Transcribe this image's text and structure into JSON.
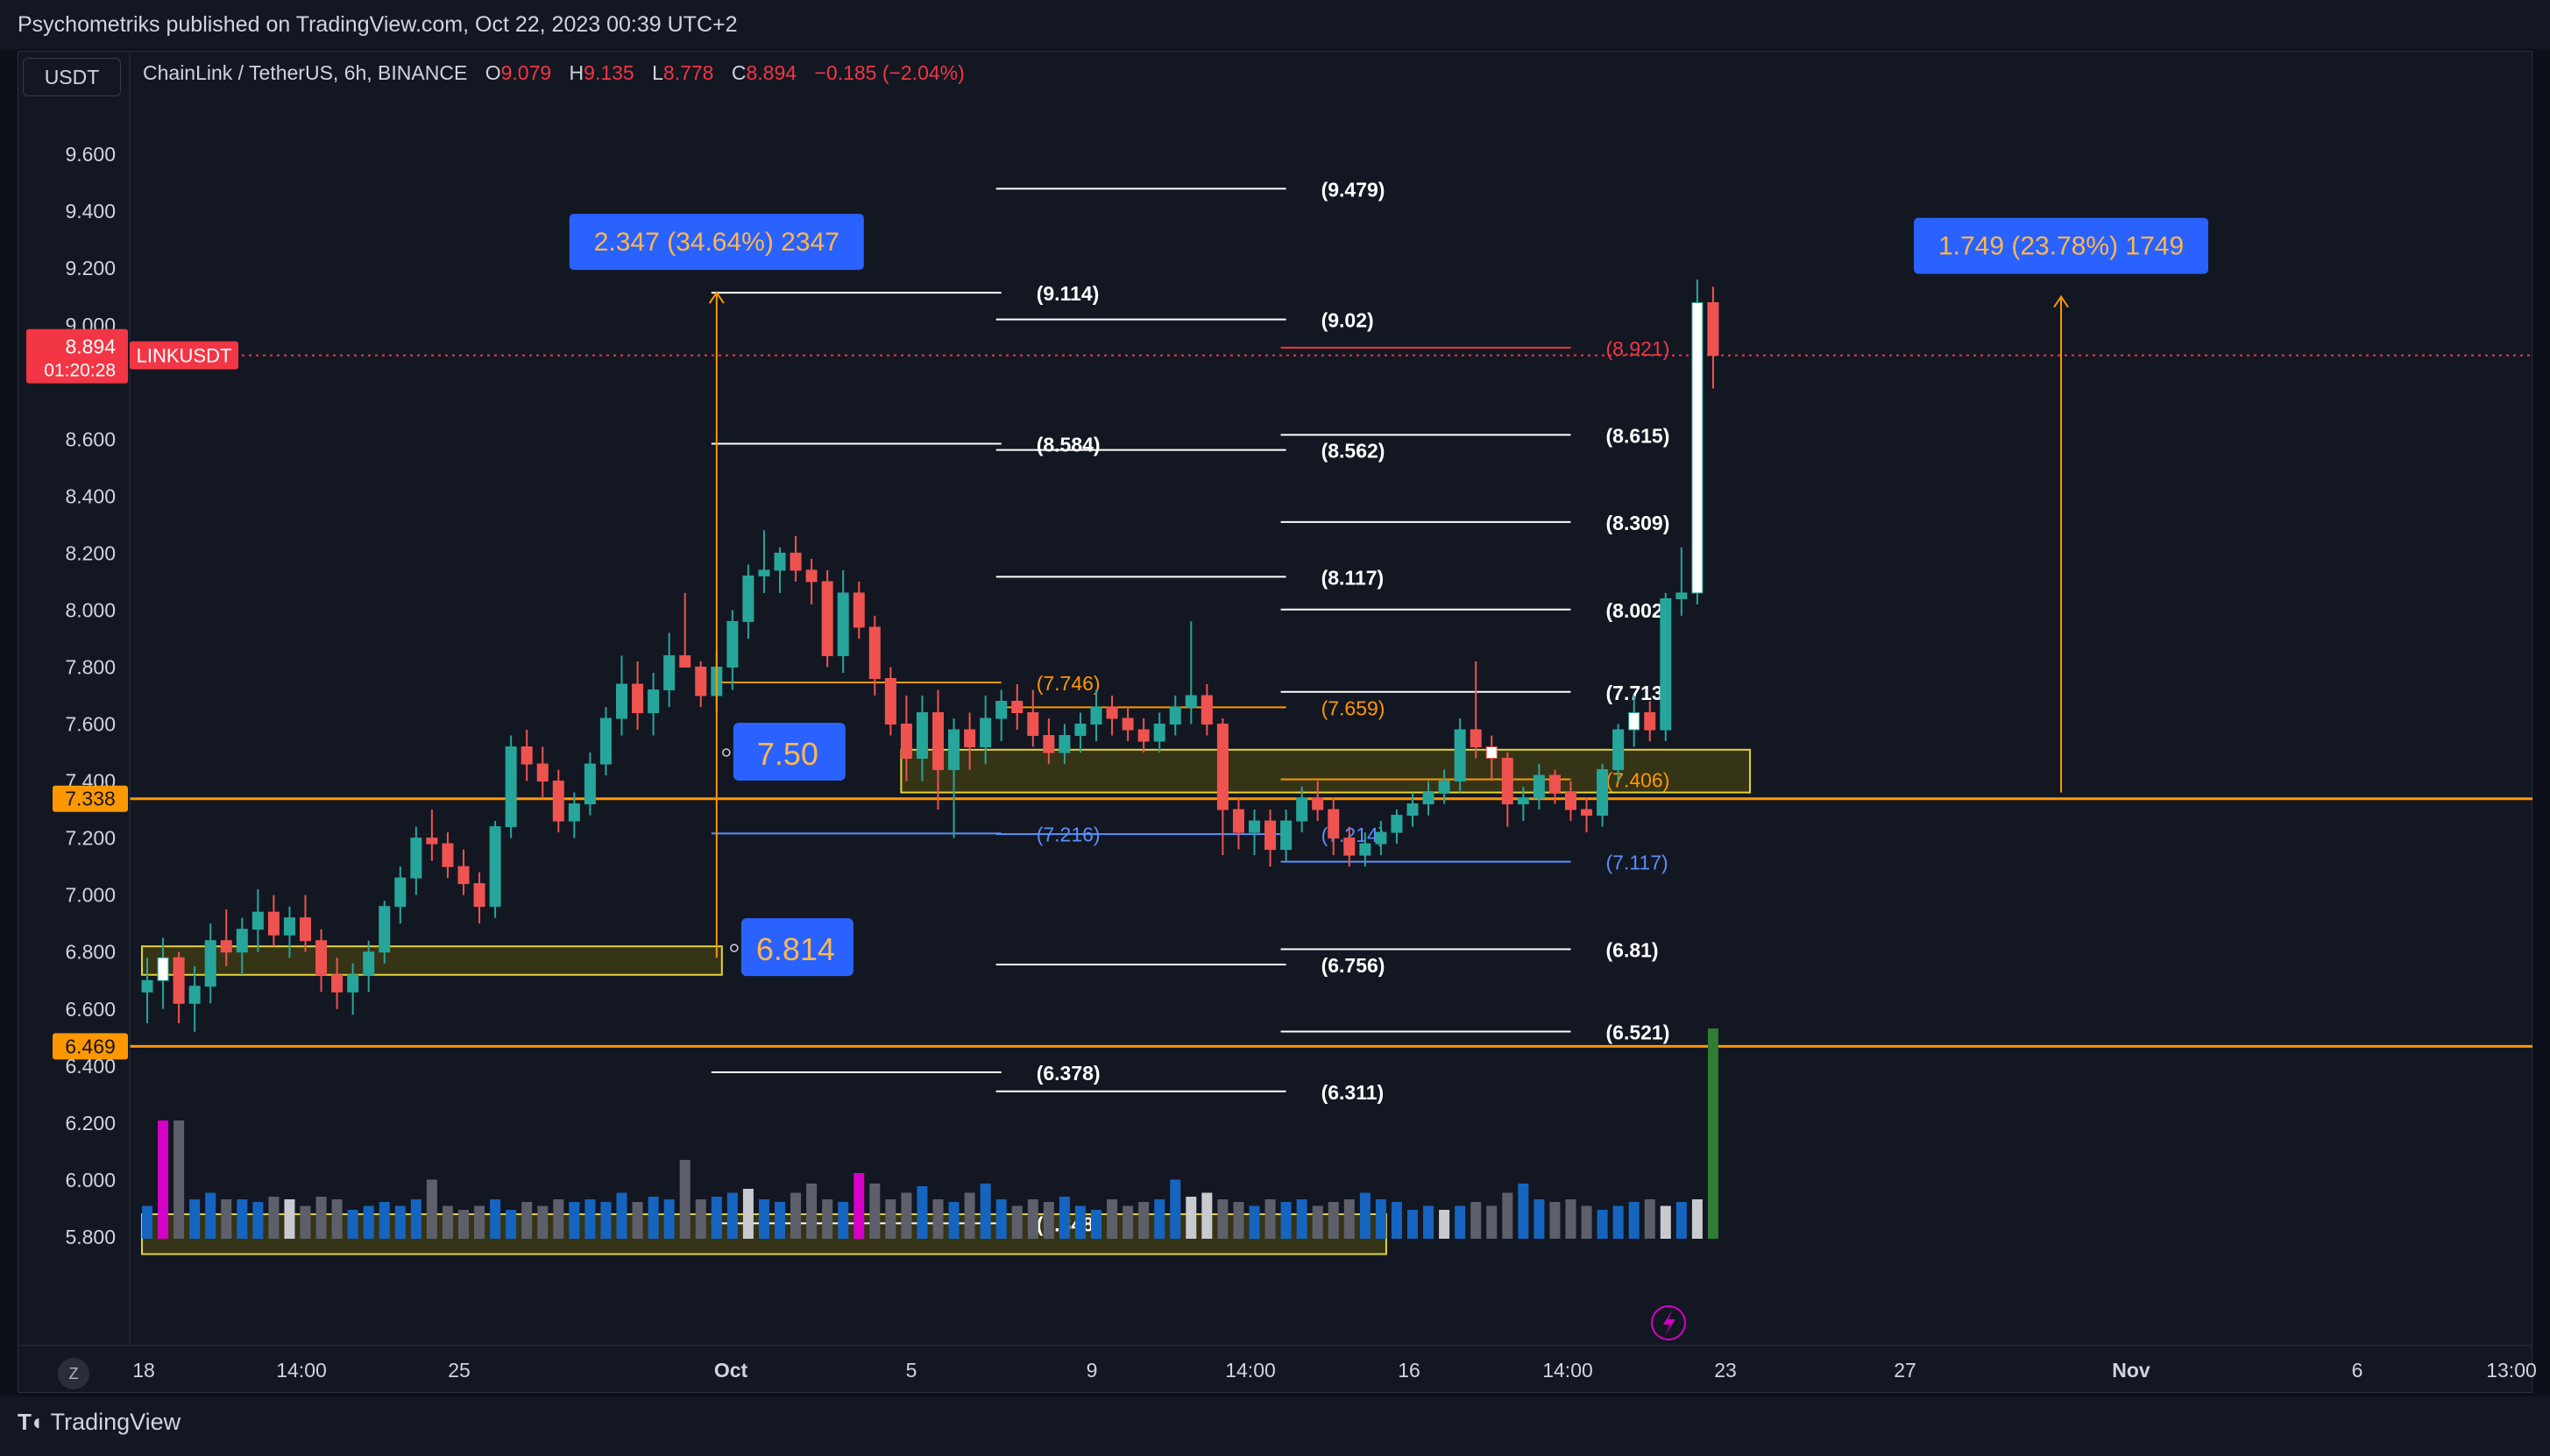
{
  "header": {
    "published": "Psychometriks published on TradingView.com, Oct 22, 2023 00:39 UTC+2"
  },
  "footer": {
    "brand": "TradingView",
    "brand_icon": "tradingview-logo-icon"
  },
  "toolbar": {
    "currency": "USDT",
    "z_label": "Z",
    "lightning_icon": "lightning-icon"
  },
  "legend": {
    "symbol": "ChainLink / TetherUS, 6h, BINANCE",
    "o_label": "O",
    "o_value": "9.079",
    "h_label": "H",
    "h_value": "9.135",
    "l_label": "L",
    "l_value": "8.778",
    "c_label": "C",
    "c_value": "8.894",
    "change": "−0.185 (−2.04%)"
  },
  "colors": {
    "up": "#26a69a",
    "down": "#ef5350",
    "orange": "#ff9800",
    "blue_label": "#2962ff",
    "zone_fill": "#3d3a14",
    "zone_stroke": "#e5d532",
    "price_red": "#f23645",
    "vol_blue": "#1565c0",
    "vol_gray": "#5d606b",
    "vol_white": "#c8cad0",
    "vol_magenta": "#d500c8",
    "vol_green": "#2e7d32"
  },
  "chart_data": {
    "type": "candlestick",
    "ylim": [
      5.7,
      9.75
    ],
    "y_ticks": [
      "9.600",
      "9.400",
      "9.200",
      "9.000",
      "8.600",
      "8.400",
      "8.200",
      "8.000",
      "7.800",
      "7.600",
      "7.400",
      "7.200",
      "7.000",
      "6.800",
      "6.600",
      "6.400",
      "6.200",
      "6.000",
      "5.800"
    ],
    "x_ticks": [
      "18",
      "14:00",
      "25",
      "Oct",
      "5",
      "9",
      "14:00",
      "16",
      "14:00",
      "23",
      "27",
      "Nov",
      "6",
      "13:00"
    ],
    "current_price": {
      "label": "LINKUSDT",
      "value": "8.894",
      "countdown": "01:20:28"
    },
    "horizontal_levels": [
      {
        "value": 7.338,
        "label": "7.338"
      },
      {
        "value": 6.469,
        "label": "6.469"
      }
    ],
    "candles_ohlc": [
      [
        6.66,
        6.78,
        6.55,
        6.7
      ],
      [
        6.7,
        6.85,
        6.6,
        6.78
      ],
      [
        6.78,
        6.8,
        6.55,
        6.62
      ],
      [
        6.62,
        6.75,
        6.52,
        6.68
      ],
      [
        6.68,
        6.9,
        6.62,
        6.84
      ],
      [
        6.84,
        6.95,
        6.75,
        6.8
      ],
      [
        6.8,
        6.92,
        6.72,
        6.88
      ],
      [
        6.88,
        7.02,
        6.8,
        6.94
      ],
      [
        6.94,
        7.0,
        6.82,
        6.86
      ],
      [
        6.86,
        6.96,
        6.78,
        6.92
      ],
      [
        6.92,
        7.0,
        6.8,
        6.84
      ],
      [
        6.84,
        6.88,
        6.66,
        6.72
      ],
      [
        6.72,
        6.78,
        6.6,
        6.66
      ],
      [
        6.66,
        6.76,
        6.58,
        6.72
      ],
      [
        6.72,
        6.84,
        6.66,
        6.8
      ],
      [
        6.8,
        6.98,
        6.76,
        6.96
      ],
      [
        6.96,
        7.1,
        6.9,
        7.06
      ],
      [
        7.06,
        7.24,
        7.0,
        7.2
      ],
      [
        7.2,
        7.3,
        7.12,
        7.18
      ],
      [
        7.18,
        7.22,
        7.06,
        7.1
      ],
      [
        7.1,
        7.16,
        7.0,
        7.04
      ],
      [
        7.04,
        7.08,
        6.9,
        6.96
      ],
      [
        6.96,
        7.26,
        6.92,
        7.24
      ],
      [
        7.24,
        7.56,
        7.2,
        7.52
      ],
      [
        7.52,
        7.58,
        7.4,
        7.46
      ],
      [
        7.46,
        7.52,
        7.34,
        7.4
      ],
      [
        7.4,
        7.44,
        7.22,
        7.26
      ],
      [
        7.26,
        7.36,
        7.2,
        7.32
      ],
      [
        7.32,
        7.5,
        7.28,
        7.46
      ],
      [
        7.46,
        7.66,
        7.42,
        7.62
      ],
      [
        7.62,
        7.84,
        7.56,
        7.74
      ],
      [
        7.74,
        7.82,
        7.58,
        7.64
      ],
      [
        7.64,
        7.78,
        7.56,
        7.72
      ],
      [
        7.72,
        7.92,
        7.66,
        7.84
      ],
      [
        7.84,
        8.06,
        7.8,
        7.8
      ],
      [
        7.8,
        7.82,
        7.66,
        7.7
      ],
      [
        7.7,
        7.86,
        7.64,
        7.8
      ],
      [
        7.8,
        8.0,
        7.72,
        7.96
      ],
      [
        7.96,
        8.16,
        7.9,
        8.12
      ],
      [
        8.12,
        8.28,
        8.06,
        8.14
      ],
      [
        8.14,
        8.22,
        8.06,
        8.2
      ],
      [
        8.2,
        8.26,
        8.1,
        8.14
      ],
      [
        8.14,
        8.18,
        8.02,
        8.1
      ],
      [
        8.1,
        8.14,
        7.8,
        7.84
      ],
      [
        7.84,
        8.14,
        7.78,
        8.06
      ],
      [
        8.06,
        8.1,
        7.9,
        7.94
      ],
      [
        7.94,
        7.98,
        7.7,
        7.76
      ],
      [
        7.76,
        7.8,
        7.56,
        7.6
      ],
      [
        7.6,
        7.7,
        7.4,
        7.48
      ],
      [
        7.48,
        7.7,
        7.4,
        7.64
      ],
      [
        7.64,
        7.72,
        7.3,
        7.44
      ],
      [
        7.44,
        7.62,
        7.2,
        7.58
      ],
      [
        7.58,
        7.64,
        7.44,
        7.52
      ],
      [
        7.52,
        7.7,
        7.46,
        7.62
      ],
      [
        7.62,
        7.72,
        7.54,
        7.68
      ],
      [
        7.68,
        7.74,
        7.58,
        7.64
      ],
      [
        7.64,
        7.72,
        7.52,
        7.56
      ],
      [
        7.56,
        7.62,
        7.46,
        7.5
      ],
      [
        7.5,
        7.6,
        7.46,
        7.56
      ],
      [
        7.56,
        7.64,
        7.5,
        7.6
      ],
      [
        7.6,
        7.72,
        7.54,
        7.66
      ],
      [
        7.66,
        7.7,
        7.56,
        7.62
      ],
      [
        7.62,
        7.66,
        7.54,
        7.58
      ],
      [
        7.58,
        7.62,
        7.5,
        7.54
      ],
      [
        7.54,
        7.64,
        7.5,
        7.6
      ],
      [
        7.6,
        7.7,
        7.56,
        7.66
      ],
      [
        7.66,
        7.96,
        7.6,
        7.7
      ],
      [
        7.7,
        7.74,
        7.56,
        7.6
      ],
      [
        7.6,
        7.62,
        7.14,
        7.3
      ],
      [
        7.3,
        7.34,
        7.16,
        7.22
      ],
      [
        7.22,
        7.3,
        7.14,
        7.26
      ],
      [
        7.26,
        7.3,
        7.1,
        7.16
      ],
      [
        7.16,
        7.3,
        7.12,
        7.26
      ],
      [
        7.26,
        7.38,
        7.22,
        7.34
      ],
      [
        7.34,
        7.4,
        7.26,
        7.3
      ],
      [
        7.3,
        7.34,
        7.14,
        7.2
      ],
      [
        7.2,
        7.24,
        7.1,
        7.14
      ],
      [
        7.14,
        7.22,
        7.1,
        7.18
      ],
      [
        7.18,
        7.26,
        7.14,
        7.22
      ],
      [
        7.22,
        7.3,
        7.18,
        7.28
      ],
      [
        7.28,
        7.36,
        7.24,
        7.32
      ],
      [
        7.32,
        7.4,
        7.28,
        7.36
      ],
      [
        7.36,
        7.44,
        7.32,
        7.4
      ],
      [
        7.4,
        7.62,
        7.36,
        7.58
      ],
      [
        7.58,
        7.82,
        7.48,
        7.52
      ],
      [
        7.52,
        7.56,
        7.4,
        7.48
      ],
      [
        7.48,
        7.5,
        7.24,
        7.32
      ],
      [
        7.32,
        7.38,
        7.26,
        7.34
      ],
      [
        7.34,
        7.46,
        7.3,
        7.42
      ],
      [
        7.42,
        7.44,
        7.32,
        7.36
      ],
      [
        7.36,
        7.4,
        7.26,
        7.3
      ],
      [
        7.3,
        7.34,
        7.22,
        7.28
      ],
      [
        7.28,
        7.46,
        7.24,
        7.44
      ],
      [
        7.44,
        7.6,
        7.4,
        7.58
      ],
      [
        7.58,
        7.7,
        7.52,
        7.64
      ],
      [
        7.64,
        7.68,
        7.54,
        7.58
      ],
      [
        7.58,
        8.06,
        7.54,
        8.04
      ],
      [
        8.04,
        8.22,
        7.98,
        8.06
      ],
      [
        8.06,
        9.16,
        8.02,
        9.079
      ],
      [
        9.079,
        9.135,
        8.778,
        8.894
      ]
    ],
    "volume": [
      0.25,
      0.55,
      0.9,
      0.3,
      0.35,
      0.3,
      0.3,
      0.28,
      0.32,
      0.3,
      0.25,
      0.32,
      0.3,
      0.22,
      0.25,
      0.28,
      0.25,
      0.3,
      0.45,
      0.25,
      0.22,
      0.25,
      0.3,
      0.22,
      0.28,
      0.25,
      0.3,
      0.28,
      0.3,
      0.28,
      0.35,
      0.28,
      0.32,
      0.3,
      0.6,
      0.3,
      0.32,
      0.35,
      0.38,
      0.3,
      0.28,
      0.35,
      0.42,
      0.3,
      0.28,
      0.35,
      0.42,
      0.3,
      0.35,
      0.4,
      0.3,
      0.28,
      0.35,
      0.42,
      0.3,
      0.25,
      0.3,
      0.28,
      0.32,
      0.25,
      0.22,
      0.3,
      0.25,
      0.28,
      0.3,
      0.45,
      0.32,
      0.35,
      0.3,
      0.28,
      0.25,
      0.3,
      0.28,
      0.3,
      0.25,
      0.28,
      0.3,
      0.35,
      0.3,
      0.28,
      0.22,
      0.25,
      0.22,
      0.25,
      0.28,
      0.25,
      0.35,
      0.42,
      0.3,
      0.28,
      0.3,
      0.25,
      0.22,
      0.25,
      0.28,
      0.3,
      0.25,
      0.28,
      0.3,
      0.3,
      0.3
    ],
    "volume_markers": [
      {
        "index": 1,
        "kind": "magenta",
        "value": 0.9
      },
      {
        "index": 45,
        "kind": "magenta",
        "value": 0.5
      },
      {
        "index": 99,
        "kind": "green",
        "value": 1.0
      }
    ],
    "zones": [
      {
        "x_start": 48,
        "x_end": 101,
        "y_low": 7.36,
        "y_high": 7.51
      },
      {
        "x_start": 0,
        "x_end": 36,
        "y_low": 6.72,
        "y_high": 6.82
      },
      {
        "x_start": 0,
        "x_end": 78,
        "y_low": 5.74,
        "y_high": 5.88
      }
    ],
    "fib_sets": [
      {
        "x_start": 36,
        "x_end": 54,
        "label_col": 54,
        "levels": [
          {
            "value": 9.114,
            "label": "(9.114)"
          },
          {
            "value": 8.584,
            "label": "(8.584)"
          },
          {
            "value": 7.746,
            "label": "(7.746)",
            "color": "orange"
          },
          {
            "value": 7.216,
            "label": "(7.216)",
            "color": "blue"
          },
          {
            "value": 6.378,
            "label": "(6.378)"
          },
          {
            "value": 5.848,
            "label": "(5.848)"
          }
        ]
      },
      {
        "x_start": 54,
        "x_end": 72,
        "label_col": 72,
        "levels": [
          {
            "value": 9.479,
            "label": "(9.479)"
          },
          {
            "value": 9.02,
            "label": "(9.02)"
          },
          {
            "value": 8.562,
            "label": "(8.562)"
          },
          {
            "value": 8.117,
            "label": "(8.117)"
          },
          {
            "value": 7.659,
            "label": "(7.659)",
            "color": "orange"
          },
          {
            "value": 7.214,
            "label": "(7.214)",
            "color": "blue"
          },
          {
            "value": 6.756,
            "label": "(6.756)"
          },
          {
            "value": 6.311,
            "label": "(6.311)"
          }
        ]
      },
      {
        "x_start": 72,
        "x_end": 90,
        "label_col": 90,
        "levels": [
          {
            "value": 8.921,
            "label": "(8.921)",
            "color": "red"
          },
          {
            "value": 8.615,
            "label": "(8.615)"
          },
          {
            "value": 8.309,
            "label": "(8.309)"
          },
          {
            "value": 8.002,
            "label": "(8.002)"
          },
          {
            "value": 7.713,
            "label": "(7.713)"
          },
          {
            "value": 7.406,
            "label": "(7.406)",
            "color": "orange"
          },
          {
            "value": 7.117,
            "label": "(7.117)",
            "color": "blue"
          },
          {
            "value": 6.81,
            "label": "(6.81)"
          },
          {
            "value": 6.521,
            "label": "(6.521)"
          }
        ]
      }
    ],
    "measures": [
      {
        "x": 36,
        "y_from": 6.78,
        "y_to": 9.114,
        "label": "2.347 (34.64%) 2347"
      },
      {
        "x": 121,
        "y_from": 7.36,
        "y_to": 9.1,
        "label": "1.749 (23.78%) 1749"
      }
    ],
    "callouts": [
      {
        "label": "7.50",
        "x": 37.5,
        "y": 7.5
      },
      {
        "label": "6.814",
        "x": 38,
        "y": 6.814
      }
    ]
  }
}
